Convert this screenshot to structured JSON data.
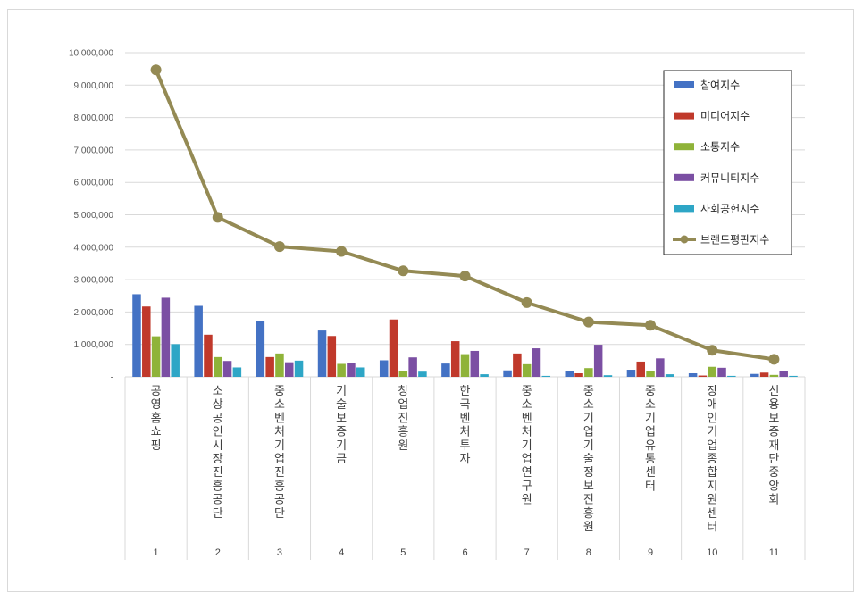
{
  "chart_data": {
    "type": "bar",
    "categories": [
      "공영홈쇼핑",
      "소상공인시장진흥공단",
      "중소벤처기업진흥공단",
      "기술보증기금",
      "창업진흥원",
      "한국벤처투자",
      "중소벤처기업연구원",
      "중소기업기술정보진흥원",
      "중소기업유통센터",
      "장애인기업종합지원센터",
      "신용보증재단중앙회"
    ],
    "ranks": [
      "1",
      "2",
      "3",
      "4",
      "5",
      "6",
      "7",
      "8",
      "9",
      "10",
      "11"
    ],
    "ylim": [
      0,
      10000000
    ],
    "yticks": [
      0,
      1000000,
      2000000,
      3000000,
      4000000,
      5000000,
      6000000,
      7000000,
      8000000,
      9000000,
      10000000
    ],
    "ytick_labels": [
      "-",
      "1,000,000",
      "2,000,000",
      "3,000,000",
      "4,000,000",
      "5,000,000",
      "6,000,000",
      "7,000,000",
      "8,000,000",
      "9,000,000",
      "10,000,000"
    ],
    "grid": true,
    "legend_position": "top-right",
    "series": [
      {
        "name": "참여지수",
        "kind": "bar",
        "color": "#4472c4",
        "values": [
          2550000,
          2190000,
          1710000,
          1430000,
          510000,
          410000,
          200000,
          190000,
          220000,
          110000,
          90000
        ]
      },
      {
        "name": "미디어지수",
        "kind": "bar",
        "color": "#c0392b",
        "values": [
          2170000,
          1300000,
          610000,
          1260000,
          1770000,
          1100000,
          720000,
          110000,
          470000,
          40000,
          130000
        ]
      },
      {
        "name": "소통지수",
        "kind": "bar",
        "color": "#8fb339",
        "values": [
          1250000,
          610000,
          720000,
          400000,
          170000,
          700000,
          390000,
          270000,
          170000,
          310000,
          60000
        ]
      },
      {
        "name": "커뮤니티지수",
        "kind": "bar",
        "color": "#7b4fa3",
        "values": [
          2440000,
          490000,
          450000,
          430000,
          600000,
          800000,
          880000,
          990000,
          570000,
          280000,
          190000
        ]
      },
      {
        "name": "사회공헌지수",
        "kind": "bar",
        "color": "#2ea6c6",
        "values": [
          1010000,
          290000,
          500000,
          290000,
          160000,
          80000,
          30000,
          50000,
          80000,
          30000,
          30000
        ]
      },
      {
        "name": "브랜드평판지수",
        "kind": "line",
        "color": "#948a54",
        "values": [
          9470000,
          4920000,
          4020000,
          3870000,
          3270000,
          3110000,
          2290000,
          1690000,
          1590000,
          820000,
          540000
        ]
      }
    ]
  }
}
